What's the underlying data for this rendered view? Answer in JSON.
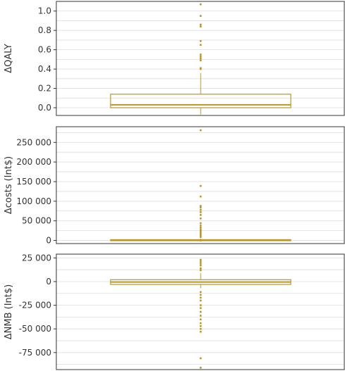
{
  "colors": {
    "box": "#b5962a",
    "grid": "#dedede",
    "frame": "#333333",
    "tick_label": "#333333"
  },
  "chart_data": [
    {
      "type": "boxplot",
      "ylabel": "ΔQALY",
      "ylim": [
        -0.08,
        1.1
      ],
      "yticks": [
        0.0,
        0.2,
        0.4,
        0.6,
        0.8,
        1.0
      ],
      "ytick_labels": [
        "0.0",
        "0.2",
        "0.4",
        "0.6",
        "0.8",
        "1.0"
      ],
      "grid": true,
      "box": {
        "q1": 0.0,
        "median": 0.03,
        "q3": 0.14,
        "whisker_low": -0.07,
        "whisker_high": 0.36
      },
      "outliers": [
        1.07,
        0.95,
        0.86,
        0.84,
        0.69,
        0.65,
        0.55,
        0.53,
        0.51,
        0.49,
        0.41,
        0.4
      ]
    },
    {
      "type": "boxplot",
      "ylabel": "Δcosts (Int$)",
      "ylim": [
        -8000,
        290000
      ],
      "yticks": [
        0,
        50000,
        100000,
        150000,
        200000,
        250000
      ],
      "ytick_labels": [
        "0",
        "50 000",
        "100 000",
        "150 000",
        "200 000",
        "250 000"
      ],
      "grid": true,
      "box": {
        "q1": 0,
        "median": 800,
        "q3": 2000,
        "whisker_low": -3000,
        "whisker_high": 5000
      },
      "outliers": [
        281000,
        139000,
        112000,
        88000,
        84000,
        78000,
        72000,
        65000,
        56000,
        44000,
        38000,
        33000,
        28000,
        24000,
        20000,
        16000,
        12000,
        9000
      ]
    },
    {
      "type": "boxplot",
      "ylabel": "ΔNMB (Int$)",
      "ylim": [
        -93000,
        29000
      ],
      "yticks": [
        25000,
        0,
        -25000,
        -50000,
        -75000
      ],
      "ytick_labels": [
        "25 000",
        "0",
        "-25 000",
        "-50 000",
        "-75 000"
      ],
      "grid": true,
      "box": {
        "q1": -3000,
        "median": -500,
        "q3": 2000,
        "whisker_low": -7000,
        "whisker_high": 9000
      },
      "outliers": [
        23000,
        21000,
        19000,
        17000,
        14000,
        12000,
        -11000,
        -14000,
        -17000,
        -20000,
        -25000,
        -28000,
        -32000,
        -36000,
        -40000,
        -44000,
        -47000,
        -50000,
        -53000,
        -81000,
        -91000
      ]
    }
  ]
}
